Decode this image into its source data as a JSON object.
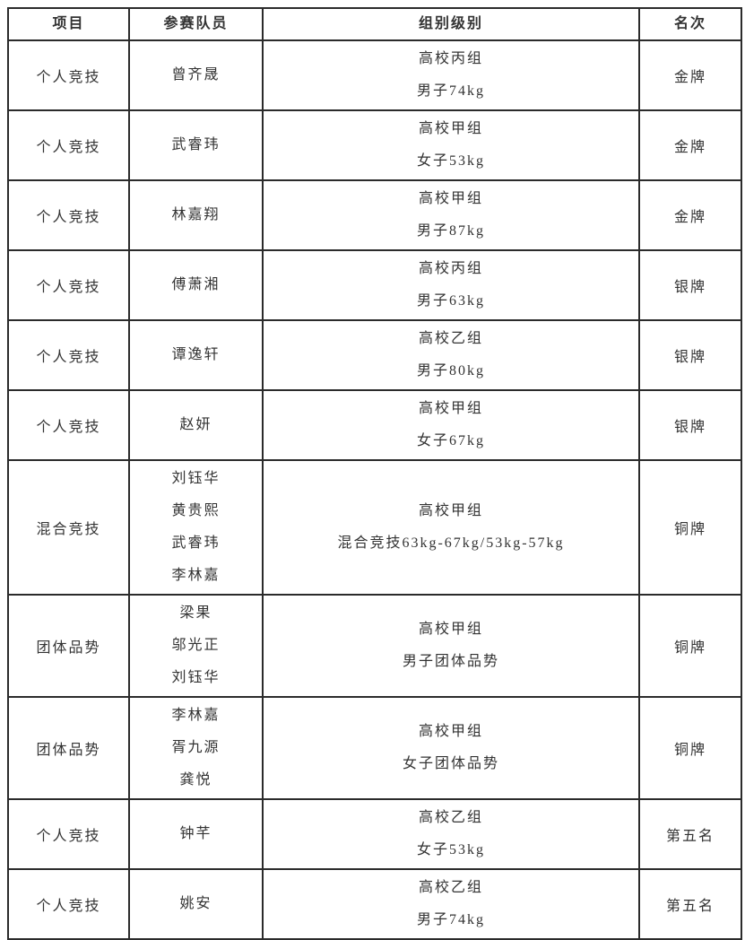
{
  "table": {
    "headers": [
      "项目",
      "参赛队员",
      "组别级别",
      "名次"
    ],
    "rows": [
      {
        "event": "个人竞技",
        "members": [
          "曾齐晟"
        ],
        "group": [
          "高校丙组",
          "男子74kg"
        ],
        "rank": "金牌"
      },
      {
        "event": "个人竞技",
        "members": [
          "武睿玮"
        ],
        "group": [
          "高校甲组",
          "女子53kg"
        ],
        "rank": "金牌"
      },
      {
        "event": "个人竞技",
        "members": [
          "林嘉翔"
        ],
        "group": [
          "高校甲组",
          "男子87kg"
        ],
        "rank": "金牌"
      },
      {
        "event": "个人竞技",
        "members": [
          "傅萧湘"
        ],
        "group": [
          "高校丙组",
          "男子63kg"
        ],
        "rank": "银牌"
      },
      {
        "event": "个人竞技",
        "members": [
          "谭逸轩"
        ],
        "group": [
          "高校乙组",
          "男子80kg"
        ],
        "rank": "银牌"
      },
      {
        "event": "个人竞技",
        "members": [
          "赵妍"
        ],
        "group": [
          "高校甲组",
          "女子67kg"
        ],
        "rank": "银牌"
      },
      {
        "event": "混合竞技",
        "members": [
          "刘钰华",
          "黄贵熙",
          "武睿玮",
          "李林嘉"
        ],
        "group": [
          "高校甲组",
          "混合竞技63kg-67kg/53kg-57kg"
        ],
        "rank": "铜牌"
      },
      {
        "event": "团体品势",
        "members": [
          "梁果",
          "邬光正",
          "刘钰华"
        ],
        "group": [
          "高校甲组",
          "男子团体品势"
        ],
        "rank": "铜牌"
      },
      {
        "event": "团体品势",
        "members": [
          "李林嘉",
          "胥九源",
          "龚悦"
        ],
        "group": [
          "高校甲组",
          "女子团体品势"
        ],
        "rank": "铜牌"
      },
      {
        "event": "个人竞技",
        "members": [
          "钟芊"
        ],
        "group": [
          "高校乙组",
          "女子53kg"
        ],
        "rank": "第五名"
      },
      {
        "event": "个人竞技",
        "members": [
          "姚安"
        ],
        "group": [
          "高校乙组",
          "男子74kg"
        ],
        "rank": "第五名"
      }
    ]
  },
  "colors": {
    "text": "#333333",
    "border": "#2b2b2b",
    "background": "#ffffff"
  }
}
